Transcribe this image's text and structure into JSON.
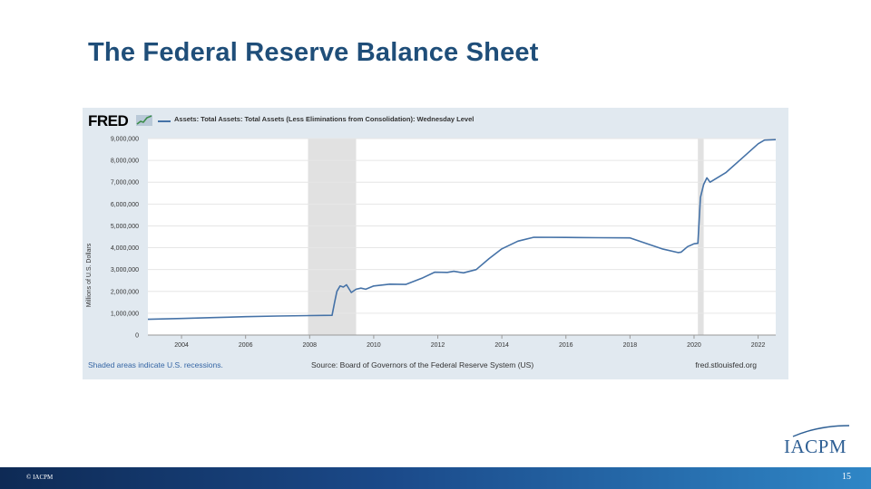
{
  "slide": {
    "title": "The Federal Reserve Balance Sheet",
    "page_number": "15",
    "copyright": "© IACPM",
    "logo_text": "IACPM"
  },
  "fred": {
    "logo_text": "FRED",
    "series_label": "Assets: Total Assets: Total Assets (Less Eliminations from Consolidation): Wednesday Level",
    "footer_left": "Shaded areas indicate U.S. recessions.",
    "footer_mid": "Source: Board of Governors of the Federal Reserve System (US)",
    "footer_right": "fred.stlouisfed.org"
  },
  "colors": {
    "title": "#1f4e79",
    "series": "#4572a7",
    "panel": "#e1e9f0",
    "recession": "#e1e1e1"
  },
  "chart_data": {
    "type": "line",
    "title": "",
    "xlabel": "",
    "ylabel": "Millions of U.S. Dollars",
    "xlim": [
      2002.95,
      2022.55
    ],
    "ylim": [
      0,
      9000000
    ],
    "y_ticks": [
      0,
      1000000,
      2000000,
      3000000,
      4000000,
      5000000,
      6000000,
      7000000,
      8000000,
      9000000
    ],
    "y_tick_labels": [
      "0",
      "1,000,000",
      "2,000,000",
      "3,000,000",
      "4,000,000",
      "5,000,000",
      "6,000,000",
      "7,000,000",
      "8,000,000",
      "9,000,000"
    ],
    "x_ticks": [
      2004,
      2006,
      2008,
      2010,
      2012,
      2014,
      2016,
      2018,
      2020,
      2022
    ],
    "x_tick_labels": [
      "2004",
      "2006",
      "2008",
      "2010",
      "2012",
      "2014",
      "2016",
      "2018",
      "2020",
      "2022"
    ],
    "grid": true,
    "recessions": [
      [
        2007.95,
        2009.45
      ],
      [
        2020.12,
        2020.3
      ]
    ],
    "series": [
      {
        "name": "Assets: Total Assets: Total Assets (Less Eliminations from Consolidation): Wednesday Level",
        "points": [
          [
            2002.95,
            720000
          ],
          [
            2004.0,
            760000
          ],
          [
            2005.0,
            800000
          ],
          [
            2006.0,
            840000
          ],
          [
            2007.0,
            870000
          ],
          [
            2008.0,
            890000
          ],
          [
            2008.7,
            905000
          ],
          [
            2008.78,
            1500000
          ],
          [
            2008.85,
            2000000
          ],
          [
            2008.95,
            2250000
          ],
          [
            2009.05,
            2200000
          ],
          [
            2009.15,
            2300000
          ],
          [
            2009.3,
            1950000
          ],
          [
            2009.45,
            2100000
          ],
          [
            2009.6,
            2150000
          ],
          [
            2009.75,
            2100000
          ],
          [
            2010.0,
            2250000
          ],
          [
            2010.5,
            2330000
          ],
          [
            2011.0,
            2320000
          ],
          [
            2011.5,
            2600000
          ],
          [
            2011.9,
            2880000
          ],
          [
            2012.3,
            2870000
          ],
          [
            2012.5,
            2920000
          ],
          [
            2012.8,
            2850000
          ],
          [
            2013.2,
            3000000
          ],
          [
            2013.6,
            3500000
          ],
          [
            2014.0,
            3950000
          ],
          [
            2014.5,
            4300000
          ],
          [
            2015.0,
            4480000
          ],
          [
            2016.0,
            4470000
          ],
          [
            2017.0,
            4460000
          ],
          [
            2018.0,
            4450000
          ],
          [
            2018.5,
            4200000
          ],
          [
            2019.0,
            3950000
          ],
          [
            2019.5,
            3780000
          ],
          [
            2019.6,
            3800000
          ],
          [
            2019.8,
            4050000
          ],
          [
            2020.0,
            4180000
          ],
          [
            2020.12,
            4200000
          ],
          [
            2020.2,
            6300000
          ],
          [
            2020.3,
            6900000
          ],
          [
            2020.4,
            7200000
          ],
          [
            2020.5,
            7000000
          ],
          [
            2021.0,
            7450000
          ],
          [
            2021.5,
            8100000
          ],
          [
            2022.0,
            8760000
          ],
          [
            2022.2,
            8930000
          ],
          [
            2022.55,
            8950000
          ]
        ]
      }
    ]
  }
}
